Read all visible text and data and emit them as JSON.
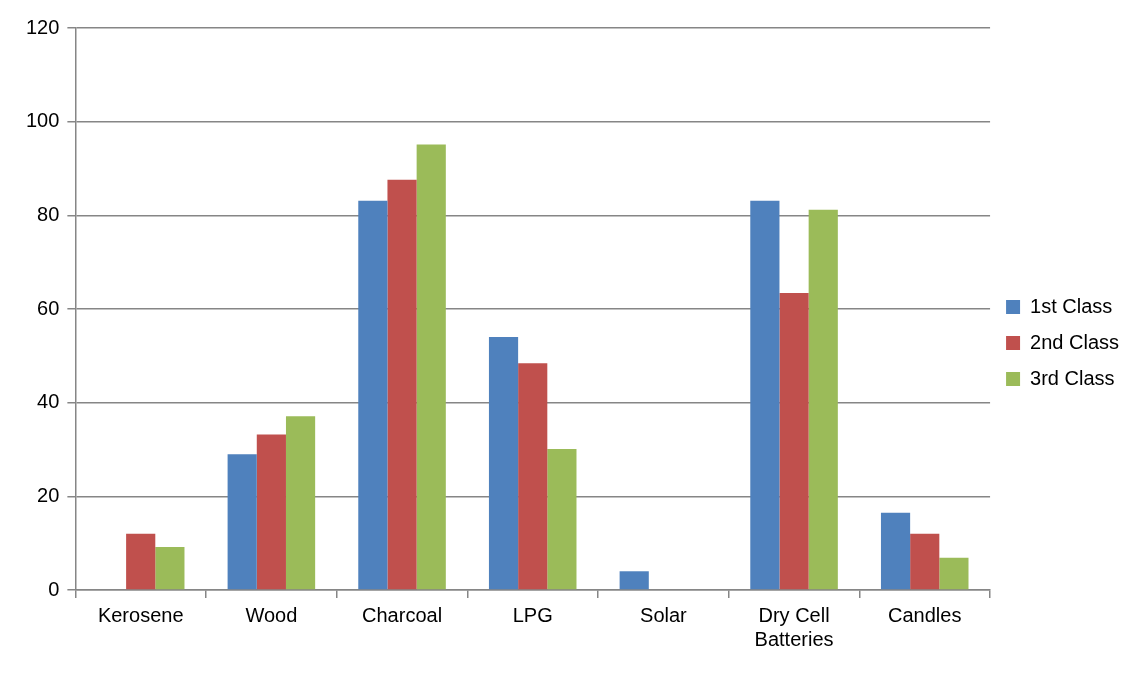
{
  "chart_data": {
    "type": "bar",
    "categories": [
      "Kerosene",
      "Wood",
      "Charcoal",
      "LPG",
      "Solar",
      "Dry Cell Batteries",
      "Candles"
    ],
    "series": [
      {
        "name": "1st Class",
        "color": "#4f81bd",
        "values": [
          0,
          29.0,
          83.1,
          54.0,
          4.0,
          83.1,
          16.5
        ]
      },
      {
        "name": "2nd Class",
        "color": "#c0504d",
        "values": [
          12.0,
          33.2,
          87.6,
          48.4,
          0,
          63.4,
          12.0
        ]
      },
      {
        "name": "3rd Class",
        "color": "#9bbb59",
        "values": [
          9.2,
          37.1,
          95.1,
          30.1,
          0,
          81.2,
          6.9
        ]
      }
    ],
    "ylim": [
      0,
      120
    ],
    "yticks": [
      0,
      20,
      40,
      60,
      80,
      100,
      120
    ],
    "grid": "y",
    "legend": "right"
  }
}
